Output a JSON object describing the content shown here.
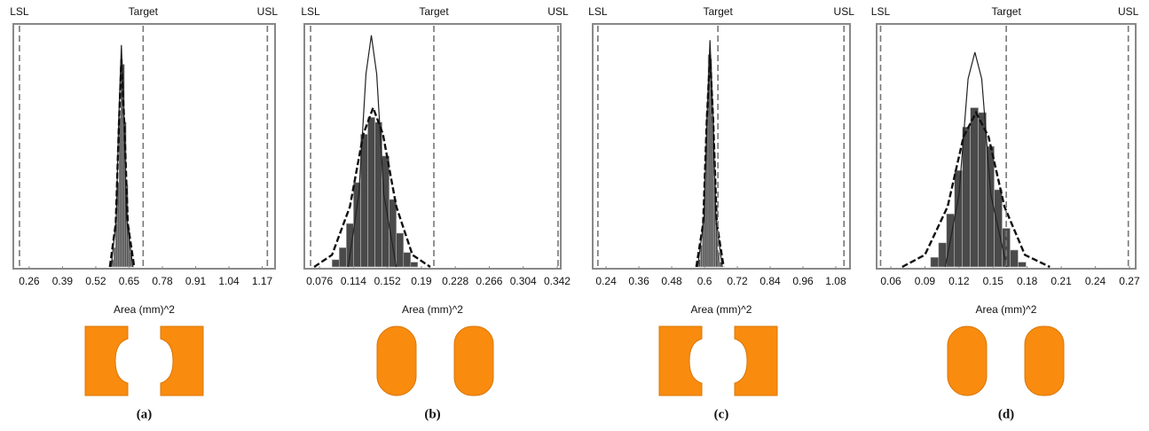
{
  "chart_data": [
    {
      "type": "histogram",
      "caption": "(a)",
      "x_label": "Area (mm)^2",
      "xlim": [
        0.198,
        1.22
      ],
      "xticks": [
        0.26,
        0.39,
        0.52,
        0.65,
        0.78,
        0.91,
        1.04,
        1.17
      ],
      "ylim": [
        0,
        100
      ],
      "spec_limits": [
        {
          "label": "LSL",
          "value": 0.222
        },
        {
          "label": "Target",
          "value": 0.705
        },
        {
          "label": "USL",
          "value": 1.19
        }
      ],
      "bins": [
        0.583,
        0.59,
        0.597,
        0.604,
        0.611,
        0.618,
        0.625,
        0.632,
        0.639,
        0.646,
        0.653,
        0.66,
        0.667
      ],
      "counts": [
        3,
        8,
        18,
        35,
        62,
        86,
        84,
        60,
        34,
        16,
        6,
        2
      ],
      "curves": [
        {
          "style": "solid",
          "x": [
            0.58,
            0.6,
            0.61,
            0.62,
            0.63,
            0.64,
            0.665
          ],
          "y": [
            0,
            20,
            62,
            92,
            62,
            20,
            0
          ]
        },
        {
          "style": "dashed",
          "x": [
            0.575,
            0.598,
            0.61,
            0.62,
            0.632,
            0.645,
            0.67
          ],
          "y": [
            0,
            18,
            58,
            86,
            58,
            18,
            0
          ]
        }
      ]
    },
    {
      "type": "histogram",
      "caption": "(b)",
      "x_label": "Area (mm)^2",
      "xlim": [
        0.059,
        0.346
      ],
      "xticks": [
        0.076,
        0.114,
        0.152,
        0.19,
        0.228,
        0.266,
        0.304,
        0.342
      ],
      "ylim": [
        0,
        100
      ],
      "spec_limits": [
        {
          "label": "LSL",
          "value": 0.066
        },
        {
          "label": "Target",
          "value": 0.204
        },
        {
          "label": "USL",
          "value": 0.343
        }
      ],
      "bins": [
        0.09,
        0.098,
        0.106,
        0.114,
        0.122,
        0.13,
        0.138,
        0.146,
        0.154,
        0.162,
        0.17,
        0.178,
        0.186
      ],
      "counts": [
        3,
        8,
        18,
        35,
        55,
        62,
        60,
        46,
        28,
        14,
        6,
        2
      ],
      "curves": [
        {
          "style": "solid",
          "x": [
            0.108,
            0.12,
            0.128,
            0.134,
            0.14,
            0.148,
            0.162
          ],
          "y": [
            0,
            30,
            80,
            96,
            80,
            30,
            0
          ]
        },
        {
          "style": "dashed",
          "x": [
            0.07,
            0.09,
            0.11,
            0.125,
            0.136,
            0.147,
            0.162,
            0.18,
            0.2
          ],
          "y": [
            0,
            5,
            25,
            55,
            66,
            55,
            25,
            5,
            0
          ]
        }
      ]
    },
    {
      "type": "histogram",
      "caption": "(c)",
      "x_label": "Area (mm)^2",
      "xlim": [
        0.191,
        1.132
      ],
      "xticks": [
        0.24,
        0.36,
        0.48,
        0.6,
        0.72,
        0.84,
        0.96,
        1.08
      ],
      "ylim": [
        0,
        100
      ],
      "spec_limits": [
        {
          "label": "LSL",
          "value": 0.21
        },
        {
          "label": "Target",
          "value": 0.649
        },
        {
          "label": "USL",
          "value": 1.11
        }
      ],
      "bins": [
        0.578,
        0.585,
        0.592,
        0.599,
        0.606,
        0.613,
        0.62,
        0.627,
        0.634,
        0.641,
        0.648,
        0.655,
        0.662
      ],
      "counts": [
        3,
        9,
        20,
        38,
        64,
        88,
        86,
        62,
        36,
        17,
        6,
        2
      ],
      "curves": [
        {
          "style": "solid",
          "x": [
            0.575,
            0.598,
            0.61,
            0.62,
            0.63,
            0.642,
            0.665
          ],
          "y": [
            0,
            20,
            64,
            94,
            64,
            20,
            0
          ]
        },
        {
          "style": "dashed",
          "x": [
            0.57,
            0.595,
            0.608,
            0.62,
            0.632,
            0.645,
            0.67
          ],
          "y": [
            0,
            18,
            60,
            88,
            60,
            18,
            0
          ]
        }
      ]
    },
    {
      "type": "histogram",
      "caption": "(d)",
      "x_label": "Area (mm)^2",
      "xlim": [
        0.0475,
        0.2755
      ],
      "xticks": [
        0.06,
        0.09,
        0.12,
        0.15,
        0.18,
        0.21,
        0.24,
        0.27
      ],
      "ylim": [
        0,
        100
      ],
      "spec_limits": [
        {
          "label": "LSL",
          "value": 0.051
        },
        {
          "label": "Target",
          "value": 0.1616
        },
        {
          "label": "USL",
          "value": 0.269
        }
      ],
      "bins": [
        0.095,
        0.102,
        0.109,
        0.116,
        0.123,
        0.13,
        0.137,
        0.144,
        0.151,
        0.158,
        0.165,
        0.172,
        0.179
      ],
      "counts": [
        4,
        10,
        22,
        40,
        58,
        66,
        64,
        50,
        32,
        16,
        7,
        2
      ],
      "curves": [
        {
          "style": "solid",
          "x": [
            0.108,
            0.12,
            0.128,
            0.134,
            0.14,
            0.148,
            0.162
          ],
          "y": [
            0,
            30,
            78,
            89,
            78,
            30,
            0
          ]
        },
        {
          "style": "dashed",
          "x": [
            0.07,
            0.09,
            0.11,
            0.124,
            0.135,
            0.146,
            0.16,
            0.178,
            0.2
          ],
          "y": [
            0,
            5,
            25,
            54,
            64,
            54,
            25,
            5,
            0
          ]
        }
      ]
    }
  ]
}
